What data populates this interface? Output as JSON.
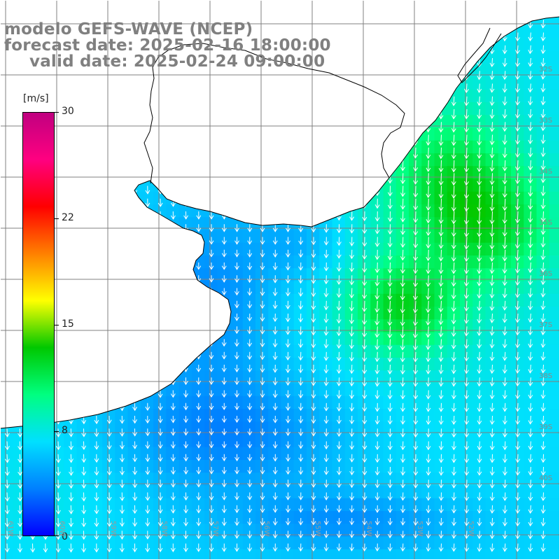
{
  "title": {
    "line1": "modelo GEFS-WAVE (NCEP)",
    "line2": "forecast date: 2025-02-16 18:00:00",
    "line3": "valid date: 2025-02-24 09:00:00"
  },
  "colorbar": {
    "unit": "[m/s]",
    "ticks": [
      "30",
      "22",
      "15",
      "8",
      "0"
    ],
    "tick_values": [
      30,
      22,
      15,
      8,
      0
    ],
    "min": 0,
    "max": 30,
    "colors": [
      "#0000ff",
      "#0080ff",
      "#00e0ff",
      "#00ff80",
      "#00c800",
      "#ffff00",
      "#ff8000",
      "#ff0000",
      "#ff0080",
      "#c00080"
    ]
  },
  "axes": {
    "lat_labels": [
      "32S",
      "33S",
      "34S",
      "35S",
      "36S",
      "37S",
      "38S",
      "39S",
      "40S"
    ],
    "lat_values": [
      -32,
      -33,
      -34,
      -35,
      -36,
      -37,
      -38,
      -39,
      -40
    ],
    "lon_labels": [
      "61W",
      "60W",
      "59W",
      "58W",
      "57W",
      "56W",
      "55W",
      "54W",
      "53W",
      "52W"
    ],
    "lon_values": [
      -61,
      -60,
      -59,
      -58,
      -57,
      -56,
      -55,
      -54,
      -53,
      -52
    ]
  },
  "map": {
    "background": "#ffffff",
    "land_color": "#ffffff",
    "coast_color": "#000000",
    "grid_color": "#808080",
    "arrow_color": "#ffffff"
  }
}
